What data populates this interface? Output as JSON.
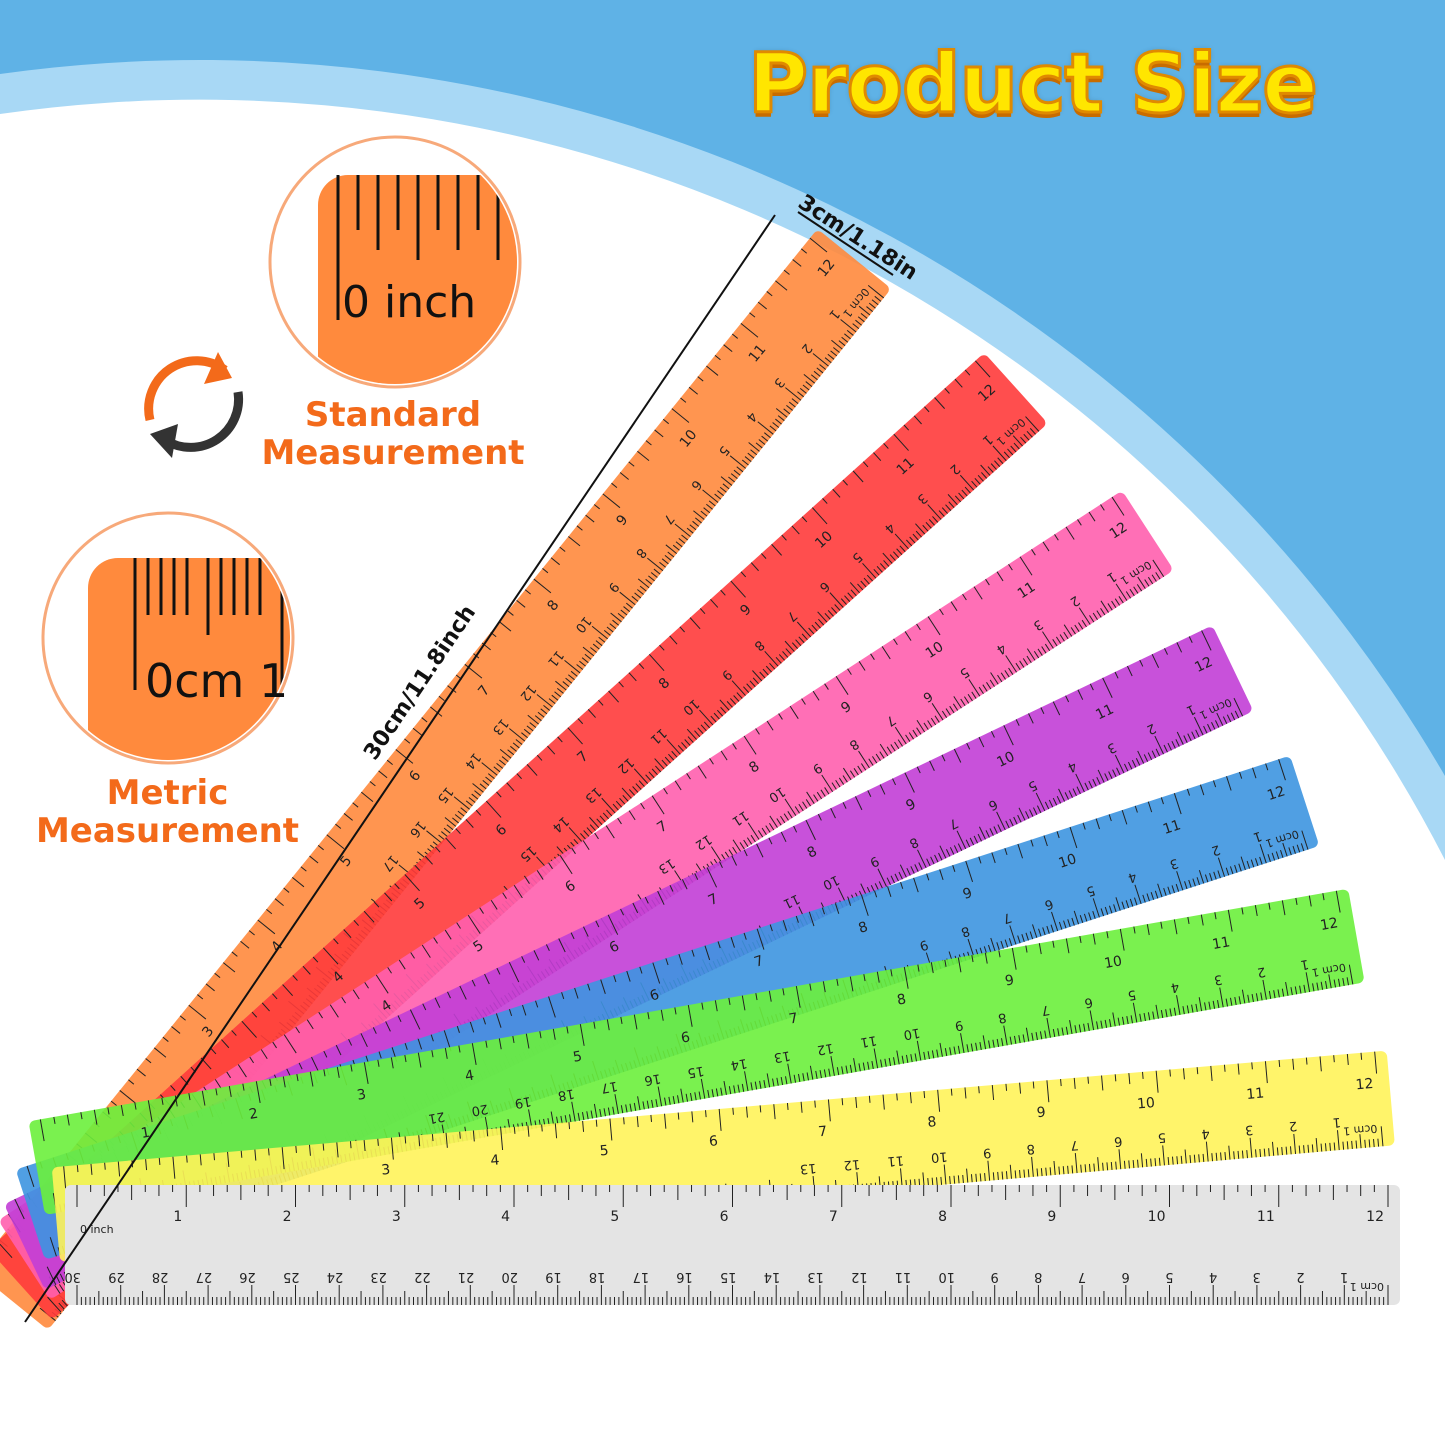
{
  "title": "Product Size",
  "width_label": "3cm/1.18in",
  "length_label": "30cm/11.8inch",
  "standard": {
    "zoom_text": "0 inch",
    "label_line1": "Standard",
    "label_line2": "Measurement"
  },
  "metric": {
    "zoom_text": "0cm 1",
    "label_line1": "Metric",
    "label_line2": "Measurement"
  },
  "icons": [
    "swap-arrows-icon"
  ],
  "colors": {
    "background_blue": "#5fb2e6",
    "accent_orange": "#f36a1a",
    "title_yellow": "#ffe600"
  },
  "ruler_units": {
    "inch_start": "0 inch",
    "cm_start": "0cm 1"
  },
  "inch_labels": [
    "1",
    "2",
    "3",
    "4",
    "5",
    "6",
    "7",
    "8",
    "9",
    "10",
    "11",
    "12"
  ],
  "cm_labels": [
    "1",
    "2",
    "3",
    "4",
    "5",
    "6",
    "7",
    "8",
    "9",
    "10",
    "11",
    "12",
    "13",
    "14",
    "15",
    "16",
    "17",
    "18",
    "19",
    "20",
    "21",
    "22",
    "23",
    "24",
    "25",
    "26",
    "27",
    "28",
    "29",
    "30"
  ],
  "rulers": [
    {
      "color": "orange",
      "fill": "#ff8a3d"
    },
    {
      "color": "red",
      "fill": "#ff3b3b"
    },
    {
      "color": "pink",
      "fill": "#ff5fae"
    },
    {
      "color": "purple",
      "fill": "#c23ed6"
    },
    {
      "color": "blue",
      "fill": "#3d95e0"
    },
    {
      "color": "green",
      "fill": "#6cf03c"
    },
    {
      "color": "yellow",
      "fill": "#fff35a"
    },
    {
      "color": "clear",
      "fill": "#e4e4e4"
    }
  ]
}
